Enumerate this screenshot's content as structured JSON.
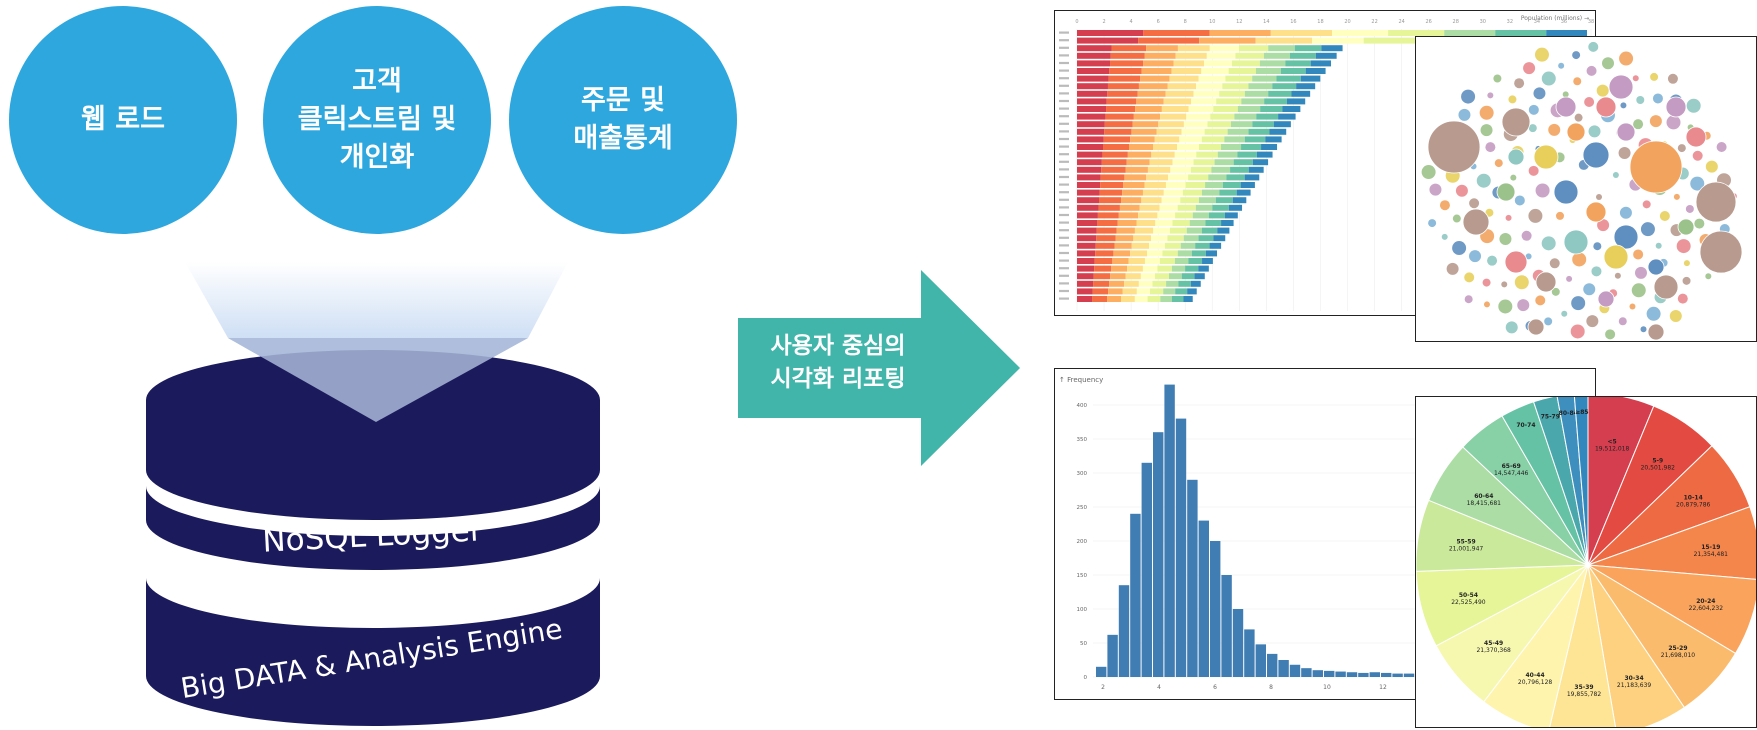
{
  "circles": [
    {
      "lines": [
        "웹 로드"
      ]
    },
    {
      "lines": [
        "고객",
        "클릭스트림 및",
        "개인화"
      ]
    },
    {
      "lines": [
        "주문 및",
        "매출통계"
      ]
    }
  ],
  "database": {
    "layer1": "NoSQL Logger",
    "layer2": "Big DATA & Analysis Engine"
  },
  "arrow": {
    "lines": [
      "사용자 중심의",
      "시각화 리포팅"
    ]
  },
  "colors": {
    "circle_blue": "#2ea7df",
    "db_navy": "#1b1a5c",
    "arrow_teal": "#41b5aa",
    "hist_bar": "#3f7db3"
  },
  "stacked_bar": {
    "legend": "Population (millions) →",
    "x_ticks": [
      "0",
      "2",
      "4",
      "6",
      "8",
      "10",
      "12",
      "14",
      "16",
      "18",
      "20",
      "22",
      "24",
      "26",
      "28",
      "30",
      "32",
      "34",
      "36",
      "38"
    ]
  },
  "histogram": {
    "y_label": "↑ Frequency",
    "y_ticks": [
      "0",
      "50",
      "100",
      "150",
      "200",
      "250",
      "300",
      "350",
      "400"
    ],
    "x_ticks": [
      "2",
      "4",
      "6",
      "8",
      "10",
      "12"
    ]
  },
  "pie": {
    "slices": [
      {
        "label": "<5",
        "value": "19,512,018"
      },
      {
        "label": "5-9",
        "value": "20,501,982"
      },
      {
        "label": "10-14",
        "value": "20,879,786"
      },
      {
        "label": "15-19",
        "value": "21,354,481"
      },
      {
        "label": "20-24",
        "value": "22,604,232"
      },
      {
        "label": "25-29",
        "value": "21,698,010"
      },
      {
        "label": "30-34",
        "value": "21,183,639"
      },
      {
        "label": "35-39",
        "value": "19,855,782"
      },
      {
        "label": "40-44",
        "value": "20,796,128"
      },
      {
        "label": "45-49",
        "value": "21,370,368"
      },
      {
        "label": "50-54",
        "value": "22,525,490"
      },
      {
        "label": "55-59",
        "value": "21,001,947"
      },
      {
        "label": "60-64",
        "value": "18,415,681"
      },
      {
        "label": "65-69",
        "value": "14,547,446"
      },
      {
        "label": "70-74",
        "value": ""
      },
      {
        "label": "75-79",
        "value": ""
      },
      {
        "label": "80-84",
        "value": ""
      },
      {
        "label": "≥85",
        "value": ""
      }
    ]
  }
}
